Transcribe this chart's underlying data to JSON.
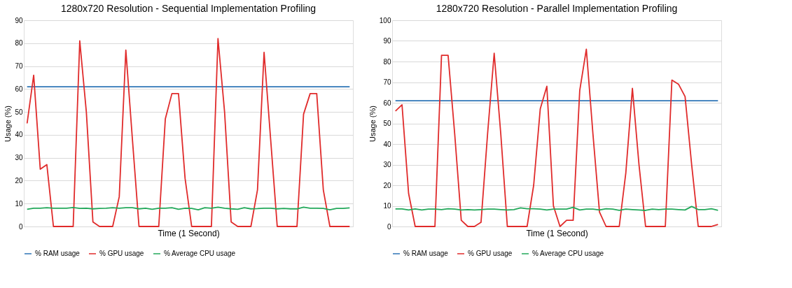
{
  "chart_data": [
    {
      "type": "line",
      "title": "1280x720 Resolution - Sequential Implementation Profiling",
      "xlabel": "Time (1 Second)",
      "ylabel": "Usage (%)",
      "categories": [
        null,
        null,
        null,
        null,
        null,
        null,
        null,
        null,
        null,
        null,
        null,
        null,
        null,
        null,
        null,
        null,
        null,
        null,
        null,
        null,
        null,
        null,
        null,
        null,
        null,
        null,
        null,
        null,
        null,
        null,
        null,
        null,
        null,
        null,
        null,
        null,
        null,
        null,
        null,
        null,
        null,
        null,
        null,
        null,
        null,
        null,
        null,
        null,
        null,
        null
      ],
      "series": [
        {
          "name": "% RAM usage",
          "color": "#2e75b6",
          "values": [
            61,
            61,
            61,
            61,
            61,
            61,
            61,
            61,
            61,
            61,
            61,
            61,
            61,
            61,
            61,
            61,
            61,
            61,
            61,
            61,
            61,
            61,
            61,
            61,
            61,
            61,
            61,
            61,
            61,
            61,
            61,
            61,
            61,
            61,
            61,
            61,
            61,
            61,
            61,
            61,
            61,
            61,
            61,
            61,
            61,
            61,
            61,
            61,
            61,
            61
          ]
        },
        {
          "name": "% GPU usage",
          "color": "#e02b2b",
          "values": [
            45,
            66,
            25,
            27,
            0,
            0,
            0,
            0,
            81,
            50,
            2,
            0,
            0,
            0,
            13,
            77,
            38,
            0,
            0,
            0,
            0,
            47,
            58,
            58,
            21,
            0,
            0,
            0,
            0,
            82,
            50,
            2,
            0,
            0,
            0,
            16,
            76,
            38,
            0,
            0,
            0,
            0,
            49,
            58,
            58,
            16,
            0,
            0,
            0,
            0
          ]
        },
        {
          "name": "% Average  CPU usage",
          "color": "#22a85a",
          "values": [
            7.5,
            8,
            8,
            8.2,
            8,
            8,
            8,
            8.3,
            7.9,
            8,
            7.7,
            7.9,
            8,
            8.2,
            8,
            8.2,
            8.2,
            7.7,
            8,
            7.5,
            8,
            8,
            8.2,
            7.5,
            8,
            7.9,
            7.3,
            8.2,
            8,
            8.4,
            8,
            7.7,
            7.5,
            8.2,
            7.7,
            7.8,
            8,
            8,
            7.7,
            7.9,
            7.7,
            7.7,
            8.4,
            8,
            8,
            7.9,
            7.3,
            7.9,
            7.9,
            8.1
          ]
        }
      ],
      "ylim": [
        0,
        90
      ],
      "yticks": [
        0,
        10,
        20,
        30,
        40,
        50,
        60,
        70,
        80,
        90
      ],
      "grid": "y",
      "legend": "bottom",
      "tick_labels": "y",
      "line_style": "solid",
      "marker": "none"
    },
    {
      "type": "line",
      "title": "1280x720 Resolution - Parallel Implementation Profiling",
      "xlabel": "Time (1 Second)",
      "ylabel": "Usage (%)",
      "categories": [
        null,
        null,
        null,
        null,
        null,
        null,
        null,
        null,
        null,
        null,
        null,
        null,
        null,
        null,
        null,
        null,
        null,
        null,
        null,
        null,
        null,
        null,
        null,
        null,
        null,
        null,
        null,
        null,
        null,
        null,
        null,
        null,
        null,
        null,
        null,
        null,
        null,
        null,
        null,
        null,
        null,
        null,
        null,
        null,
        null,
        null,
        null,
        null,
        null,
        null
      ],
      "series": [
        {
          "name": "% RAM usage",
          "color": "#2e75b6",
          "values": [
            61,
            61,
            61,
            61,
            61,
            61,
            61,
            61,
            61,
            61,
            61,
            61,
            61,
            61,
            61,
            61,
            61,
            61,
            61,
            61,
            61,
            61,
            61,
            61,
            61,
            61,
            61,
            61,
            61,
            61,
            61,
            61,
            61,
            61,
            61,
            61,
            61,
            61,
            61,
            61,
            61,
            61,
            61,
            61,
            61,
            61,
            61,
            61,
            61,
            61
          ]
        },
        {
          "name": "% GPU usage",
          "color": "#e02b2b",
          "values": [
            56,
            59,
            16,
            0,
            0,
            0,
            0,
            83,
            83,
            45,
            3,
            0,
            0,
            2,
            45,
            84,
            45,
            0,
            0,
            0,
            0,
            20,
            57,
            68,
            10,
            0,
            3,
            3,
            66,
            86,
            45,
            7,
            0,
            0,
            0,
            26,
            67,
            30,
            0,
            0,
            0,
            0,
            71,
            69,
            63,
            30,
            0,
            0,
            0,
            1
          ]
        },
        {
          "name": "% Average  CPU usage",
          "color": "#22a85a",
          "values": [
            8.5,
            8.5,
            8,
            8.5,
            8,
            8.4,
            8.4,
            8.2,
            8.6,
            8.4,
            8,
            8.2,
            8,
            8.2,
            8.4,
            8.4,
            8.2,
            8,
            8.2,
            9,
            8.6,
            8.6,
            8.4,
            8,
            8.4,
            8.4,
            8.4,
            9.3,
            8,
            8.4,
            8.4,
            8,
            8.6,
            8.4,
            7.8,
            8.4,
            8.2,
            8,
            7.8,
            8.4,
            8.2,
            8.4,
            8.4,
            8.2,
            8,
            9.7,
            8.2,
            8.2,
            8.6,
            7.8
          ]
        }
      ],
      "ylim": [
        0,
        100
      ],
      "yticks": [
        0,
        10,
        20,
        30,
        40,
        50,
        60,
        70,
        80,
        90,
        100
      ],
      "grid": "y",
      "legend": "bottom",
      "tick_labels": "y",
      "line_style": "solid",
      "marker": "none"
    }
  ]
}
